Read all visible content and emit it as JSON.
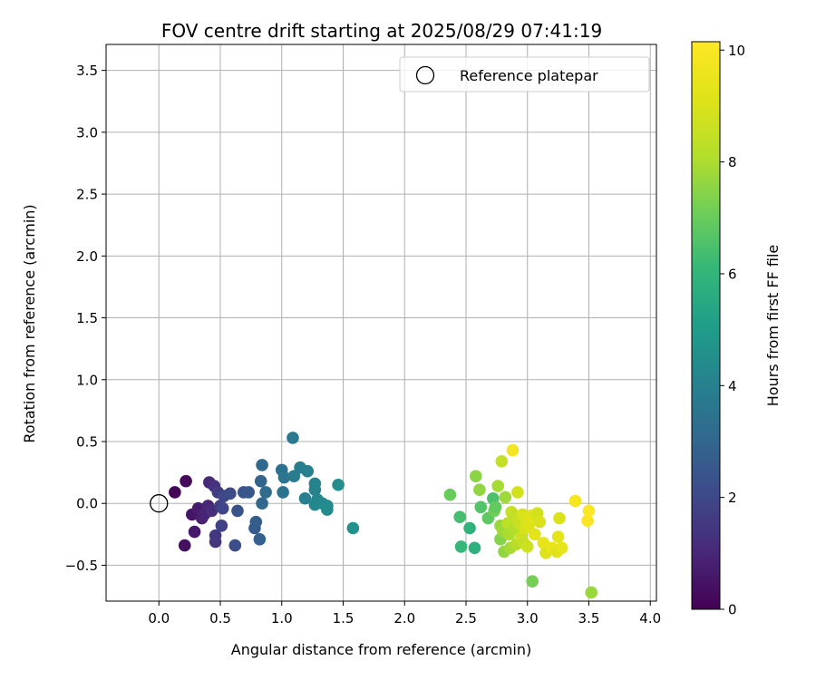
{
  "chart_data": {
    "type": "scatter",
    "title": "FOV centre drift starting at 2025/08/29 07:41:19",
    "xlabel": "Angular distance from reference (arcmin)",
    "ylabel": "Rotation from reference (arcmin)",
    "xlim": [
      -0.43,
      4.05
    ],
    "ylim": [
      -0.79,
      3.71
    ],
    "xticks": [
      0.0,
      0.5,
      1.0,
      1.5,
      2.0,
      2.5,
      3.0,
      3.5,
      4.0
    ],
    "yticks": [
      -0.5,
      0.0,
      0.5,
      1.0,
      1.5,
      2.0,
      2.5,
      3.0,
      3.5
    ],
    "grid": true,
    "legend": {
      "position": "top-right",
      "entries": [
        "Reference platepar"
      ]
    },
    "reference_point": {
      "x": 0.0,
      "y": 0.0
    },
    "colorbar": {
      "label": "Hours from first FF file",
      "min": 0,
      "max": 10.15,
      "ticks": [
        0,
        2,
        4,
        6,
        8,
        10
      ],
      "colormap": "viridis"
    },
    "points": [
      {
        "x": 0.13,
        "y": 0.09,
        "c": 0.1
      },
      {
        "x": 0.22,
        "y": 0.18,
        "c": 0.2
      },
      {
        "x": 0.21,
        "y": -0.34,
        "c": 0.4
      },
      {
        "x": 0.27,
        "y": -0.09,
        "c": 0.5
      },
      {
        "x": 0.29,
        "y": -0.23,
        "c": 0.6
      },
      {
        "x": 0.32,
        "y": -0.04,
        "c": 0.7
      },
      {
        "x": 0.35,
        "y": -0.12,
        "c": 0.8
      },
      {
        "x": 0.37,
        "y": -0.09,
        "c": 0.9
      },
      {
        "x": 0.4,
        "y": -0.02,
        "c": 1.0
      },
      {
        "x": 0.41,
        "y": 0.17,
        "c": 1.1
      },
      {
        "x": 0.43,
        "y": -0.06,
        "c": 1.2
      },
      {
        "x": 0.45,
        "y": 0.14,
        "c": 1.3
      },
      {
        "x": 0.46,
        "y": -0.31,
        "c": 1.4
      },
      {
        "x": 0.46,
        "y": -0.26,
        "c": 1.5
      },
      {
        "x": 0.48,
        "y": 0.09,
        "c": 1.6
      },
      {
        "x": 0.5,
        "y": -0.02,
        "c": 1.7
      },
      {
        "x": 0.51,
        "y": -0.18,
        "c": 1.8
      },
      {
        "x": 0.52,
        "y": -0.04,
        "c": 1.9
      },
      {
        "x": 0.53,
        "y": 0.06,
        "c": 2.0
      },
      {
        "x": 0.58,
        "y": 0.08,
        "c": 2.1
      },
      {
        "x": 0.62,
        "y": -0.34,
        "c": 2.2
      },
      {
        "x": 0.64,
        "y": -0.06,
        "c": 2.3
      },
      {
        "x": 0.69,
        "y": 0.09,
        "c": 2.4
      },
      {
        "x": 0.73,
        "y": 0.09,
        "c": 2.5
      },
      {
        "x": 0.78,
        "y": -0.2,
        "c": 2.6
      },
      {
        "x": 0.79,
        "y": -0.15,
        "c": 2.7
      },
      {
        "x": 0.82,
        "y": -0.29,
        "c": 2.8
      },
      {
        "x": 0.83,
        "y": 0.18,
        "c": 2.9
      },
      {
        "x": 0.84,
        "y": 0.0,
        "c": 3.0
      },
      {
        "x": 0.84,
        "y": 0.31,
        "c": 3.1
      },
      {
        "x": 0.87,
        "y": 0.09,
        "c": 3.2
      },
      {
        "x": 1.0,
        "y": 0.27,
        "c": 3.4
      },
      {
        "x": 1.01,
        "y": 0.09,
        "c": 3.5
      },
      {
        "x": 1.02,
        "y": 0.21,
        "c": 3.6
      },
      {
        "x": 1.09,
        "y": 0.53,
        "c": 3.7
      },
      {
        "x": 1.1,
        "y": 0.22,
        "c": 3.8
      },
      {
        "x": 1.15,
        "y": 0.29,
        "c": 3.9
      },
      {
        "x": 1.19,
        "y": 0.04,
        "c": 4.0
      },
      {
        "x": 1.21,
        "y": 0.26,
        "c": 4.0
      },
      {
        "x": 1.27,
        "y": 0.16,
        "c": 4.1
      },
      {
        "x": 1.27,
        "y": 0.11,
        "c": 4.1
      },
      {
        "x": 1.27,
        "y": -0.01,
        "c": 4.2
      },
      {
        "x": 1.29,
        "y": 0.03,
        "c": 4.2
      },
      {
        "x": 1.33,
        "y": 0.0,
        "c": 4.3
      },
      {
        "x": 1.37,
        "y": -0.02,
        "c": 4.3
      },
      {
        "x": 1.37,
        "y": -0.05,
        "c": 4.4
      },
      {
        "x": 1.46,
        "y": 0.15,
        "c": 4.5
      },
      {
        "x": 1.58,
        "y": -0.2,
        "c": 4.6
      },
      {
        "x": 2.37,
        "y": 0.07,
        "c": 7.0
      },
      {
        "x": 2.45,
        "y": -0.11,
        "c": 6.4
      },
      {
        "x": 2.46,
        "y": -0.35,
        "c": 6.1
      },
      {
        "x": 2.53,
        "y": -0.2,
        "c": 5.9
      },
      {
        "x": 2.57,
        "y": -0.36,
        "c": 5.8
      },
      {
        "x": 2.58,
        "y": 0.22,
        "c": 7.5
      },
      {
        "x": 2.61,
        "y": 0.11,
        "c": 7.6
      },
      {
        "x": 2.62,
        "y": -0.03,
        "c": 6.6
      },
      {
        "x": 2.68,
        "y": -0.12,
        "c": 6.8
      },
      {
        "x": 2.72,
        "y": 0.04,
        "c": 6.5
      },
      {
        "x": 2.73,
        "y": -0.06,
        "c": 7.1
      },
      {
        "x": 2.74,
        "y": -0.03,
        "c": 6.9
      },
      {
        "x": 2.76,
        "y": 0.14,
        "c": 7.9
      },
      {
        "x": 2.78,
        "y": -0.18,
        "c": 7.7
      },
      {
        "x": 2.78,
        "y": -0.29,
        "c": 7.4
      },
      {
        "x": 2.79,
        "y": 0.34,
        "c": 8.5
      },
      {
        "x": 2.8,
        "y": -0.22,
        "c": 7.8
      },
      {
        "x": 2.81,
        "y": -0.39,
        "c": 7.6
      },
      {
        "x": 2.82,
        "y": 0.05,
        "c": 7.8
      },
      {
        "x": 2.84,
        "y": -0.16,
        "c": 8.3
      },
      {
        "x": 2.85,
        "y": -0.25,
        "c": 8.0
      },
      {
        "x": 2.86,
        "y": -0.36,
        "c": 7.9
      },
      {
        "x": 2.87,
        "y": -0.07,
        "c": 8.6
      },
      {
        "x": 2.88,
        "y": 0.43,
        "c": 9.8
      },
      {
        "x": 2.89,
        "y": -0.21,
        "c": 8.1
      },
      {
        "x": 2.9,
        "y": -0.1,
        "c": 8.4
      },
      {
        "x": 2.91,
        "y": -0.33,
        "c": 8.2
      },
      {
        "x": 2.92,
        "y": 0.09,
        "c": 8.8
      },
      {
        "x": 2.93,
        "y": -0.16,
        "c": 8.6
      },
      {
        "x": 2.95,
        "y": -0.27,
        "c": 8.7
      },
      {
        "x": 2.96,
        "y": -0.09,
        "c": 8.9
      },
      {
        "x": 2.97,
        "y": -0.32,
        "c": 8.5
      },
      {
        "x": 2.98,
        "y": -0.2,
        "c": 8.9
      },
      {
        "x": 2.99,
        "y": -0.13,
        "c": 9.0
      },
      {
        "x": 3.0,
        "y": -0.35,
        "c": 8.7
      },
      {
        "x": 3.01,
        "y": -0.18,
        "c": 9.1
      },
      {
        "x": 3.03,
        "y": -0.1,
        "c": 9.2
      },
      {
        "x": 3.04,
        "y": -0.63,
        "c": 7.2
      },
      {
        "x": 3.06,
        "y": -0.25,
        "c": 9.3
      },
      {
        "x": 3.08,
        "y": -0.08,
        "c": 8.8
      },
      {
        "x": 3.1,
        "y": -0.15,
        "c": 9.0
      },
      {
        "x": 3.13,
        "y": -0.32,
        "c": 9.4
      },
      {
        "x": 3.15,
        "y": -0.4,
        "c": 9.1
      },
      {
        "x": 3.2,
        "y": -0.36,
        "c": 9.5
      },
      {
        "x": 3.24,
        "y": -0.39,
        "c": 9.2
      },
      {
        "x": 3.25,
        "y": -0.27,
        "c": 9.3
      },
      {
        "x": 3.26,
        "y": -0.12,
        "c": 9.0
      },
      {
        "x": 3.28,
        "y": -0.36,
        "c": 9.4
      },
      {
        "x": 3.39,
        "y": 0.02,
        "c": 9.9
      },
      {
        "x": 3.49,
        "y": -0.14,
        "c": 10.0
      },
      {
        "x": 3.5,
        "y": -0.06,
        "c": 10.1
      },
      {
        "x": 3.52,
        "y": -0.72,
        "c": 7.7
      }
    ]
  }
}
